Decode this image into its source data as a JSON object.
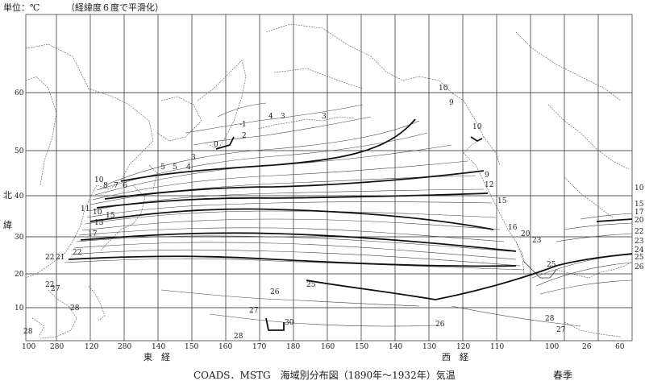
{
  "header": {
    "unit": "単位：℃",
    "note": "（経緯度６度で平滑化）"
  },
  "axes": {
    "y_ticks": [
      "10",
      "20",
      "30",
      "40",
      "50",
      "60"
    ],
    "x_ticks": [
      "100",
      "280",
      "120",
      "280",
      "140",
      "150",
      "160",
      "170",
      "180",
      "160",
      "150",
      "140",
      "130",
      "120",
      "110",
      "100",
      "26",
      "60"
    ],
    "y_label_top": "北",
    "y_label_bottom": "緯",
    "x_label_east": "東　経",
    "x_label_west": "西　経"
  },
  "footer": {
    "caption": "COADS．MSTG　海域別分布図（1890年〜1932年）気温",
    "season": "春季"
  },
  "isotherm_labels": [
    {
      "id": "t10-ne",
      "text": "10"
    },
    {
      "id": "t9-ne",
      "text": "9"
    },
    {
      "id": "t10-alaska",
      "text": "10"
    },
    {
      "id": "t9-east",
      "text": "9"
    },
    {
      "id": "t12-east",
      "text": "12"
    },
    {
      "id": "t15-east",
      "text": "15"
    },
    {
      "id": "t16-east",
      "text": "16"
    },
    {
      "id": "t20-east",
      "text": "20"
    },
    {
      "id": "t23-east",
      "text": "23"
    },
    {
      "id": "t25-east",
      "text": "25"
    },
    {
      "id": "t26-mid",
      "text": "26"
    },
    {
      "id": "t25-mid",
      "text": "25"
    },
    {
      "id": "t27-south",
      "text": "27"
    },
    {
      "id": "t28-south",
      "text": "28"
    },
    {
      "id": "t30-south",
      "text": "30"
    },
    {
      "id": "t26-south",
      "text": "26"
    },
    {
      "id": "t28-se",
      "text": "28"
    },
    {
      "id": "t27-se",
      "text": "27"
    },
    {
      "id": "t1-kam",
      "text": "-1"
    },
    {
      "id": "t2-kam",
      "text": "2"
    },
    {
      "id": "t0-kam",
      "text": "0"
    },
    {
      "id": "t4-okh",
      "text": "4"
    },
    {
      "id": "t3-okh",
      "text": "3"
    },
    {
      "id": "t3-bering",
      "text": "3"
    },
    {
      "id": "t3-jp",
      "text": "3"
    },
    {
      "id": "t4-jp",
      "text": "4"
    },
    {
      "id": "t5-jp",
      "text": "5"
    },
    {
      "id": "t5b-jp",
      "text": "5"
    },
    {
      "id": "t6-jp",
      "text": "6"
    },
    {
      "id": "t7-jp",
      "text": "7"
    },
    {
      "id": "t8-jp",
      "text": "8"
    },
    {
      "id": "t10-jp",
      "text": "10"
    },
    {
      "id": "t11-jp",
      "text": "11"
    },
    {
      "id": "t10b-jp",
      "text": "10"
    },
    {
      "id": "t13-jp",
      "text": "13"
    },
    {
      "id": "t15-jp",
      "text": "15"
    },
    {
      "id": "t17-jp",
      "text": "17"
    },
    {
      "id": "t22-cn",
      "text": "22"
    },
    {
      "id": "t22b-cn",
      "text": "22"
    },
    {
      "id": "t21-cn",
      "text": "21"
    },
    {
      "id": "t27-cn",
      "text": "27"
    },
    {
      "id": "t22c-cn",
      "text": "22"
    },
    {
      "id": "t28-ph",
      "text": "28"
    },
    {
      "id": "t28-bl",
      "text": "28"
    },
    {
      "id": "r10",
      "text": "10"
    },
    {
      "id": "r15",
      "text": "15"
    },
    {
      "id": "r17",
      "text": "17"
    },
    {
      "id": "r20",
      "text": "20"
    },
    {
      "id": "r22",
      "text": "22"
    },
    {
      "id": "r23",
      "text": "23"
    },
    {
      "id": "r24",
      "text": "24"
    },
    {
      "id": "r25",
      "text": "25"
    },
    {
      "id": "r26",
      "text": "26"
    }
  ]
}
